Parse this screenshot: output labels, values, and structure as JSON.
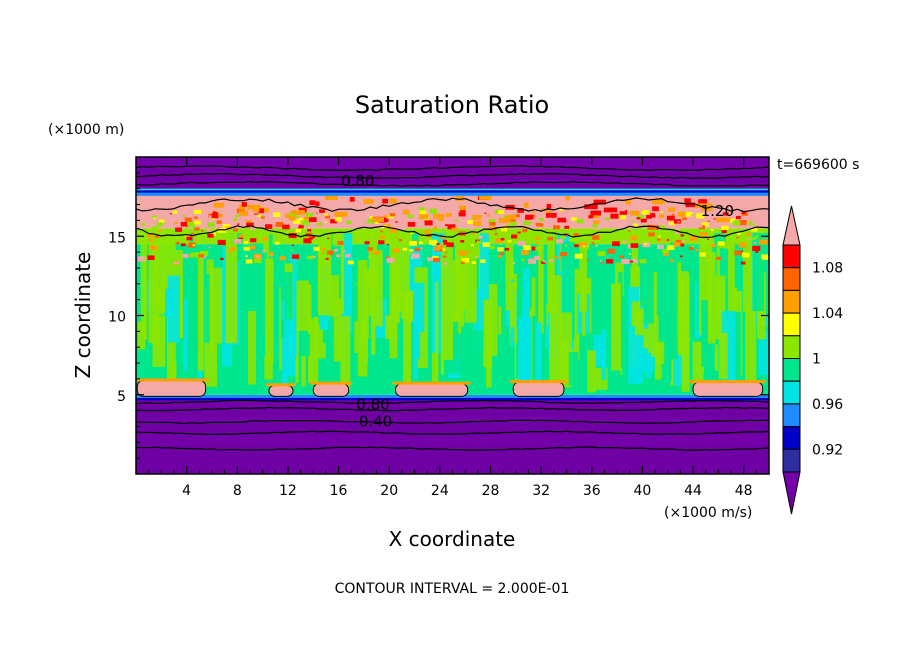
{
  "chart_data": {
    "type": "heatmap",
    "title": "Saturation Ratio",
    "xlabel": "X coordinate",
    "ylabel": "Z coordinate",
    "x_unit": "(×1000 m/s)",
    "y_unit": "(×1000 m)",
    "time_label": "t=669600 s",
    "footer": "CONTOUR INTERVAL = 2.000E-01",
    "xlim": [
      0,
      50
    ],
    "ylim": [
      0,
      20
    ],
    "x_ticks": [
      4,
      8,
      12,
      16,
      20,
      24,
      28,
      32,
      36,
      40,
      44,
      48
    ],
    "y_ticks": [
      5,
      10,
      15
    ],
    "colorbar": {
      "levels": [
        0.92,
        0.94,
        0.96,
        0.98,
        1,
        1.02,
        1.04,
        1.06,
        1.08,
        1.1
      ],
      "tick_labels": [
        "0.92",
        "0.96",
        "1",
        "1.04",
        "1.08"
      ],
      "tick_values": [
        0.92,
        0.96,
        1.0,
        1.04,
        1.08
      ],
      "colors": [
        "#7300a8",
        "#2e2ea0",
        "#0000c8",
        "#1e8cff",
        "#00e4e4",
        "#00e68c",
        "#8ce600",
        "#ffff00",
        "#ffa000",
        "#ff6400",
        "#ff0000",
        "#f5a8a8"
      ]
    },
    "contour_labels": [
      {
        "text": "0.80",
        "x": 16.2,
        "z": 18.5
      },
      {
        "text": "1.20",
        "x": 44.6,
        "z": 16.6
      },
      {
        "text": "0.80",
        "x": 17.4,
        "z": 4.4
      },
      {
        "text": "0.40",
        "x": 17.6,
        "z": 3.3
      }
    ],
    "bands": [
      {
        "z0": 0.0,
        "z1": 4.8,
        "value": 0.3,
        "color": "#7300a8"
      },
      {
        "z0": 4.8,
        "z1": 5.0,
        "value": 0.96,
        "color": "#1e8cff"
      },
      {
        "z0": 5.0,
        "z1": 14.5,
        "value": 0.99,
        "color": "#00e68c"
      },
      {
        "z0": 14.5,
        "z1": 15.5,
        "value": 1.03,
        "color": "#8ce600"
      },
      {
        "z0": 15.5,
        "z1": 17.6,
        "value": 1.15,
        "color": "#f5a8a8"
      },
      {
        "z0": 17.6,
        "z1": 18.0,
        "value": 0.95,
        "color": "#00e4e4"
      },
      {
        "z0": 18.0,
        "z1": 20.0,
        "value": 0.5,
        "color": "#7300a8"
      }
    ],
    "low_lens_regions": [
      {
        "x0": 0.1,
        "x1": 5.5,
        "z0": 4.9,
        "z1": 5.9
      },
      {
        "x0": 10.5,
        "x1": 12.4,
        "z0": 4.9,
        "z1": 5.6
      },
      {
        "x0": 14.0,
        "x1": 16.8,
        "z0": 4.9,
        "z1": 5.7
      },
      {
        "x0": 20.5,
        "x1": 26.2,
        "z0": 4.9,
        "z1": 5.7
      },
      {
        "x0": 29.8,
        "x1": 33.8,
        "z0": 4.9,
        "z1": 5.8
      },
      {
        "x0": 44.0,
        "x1": 49.5,
        "z0": 4.9,
        "z1": 5.8
      }
    ]
  }
}
